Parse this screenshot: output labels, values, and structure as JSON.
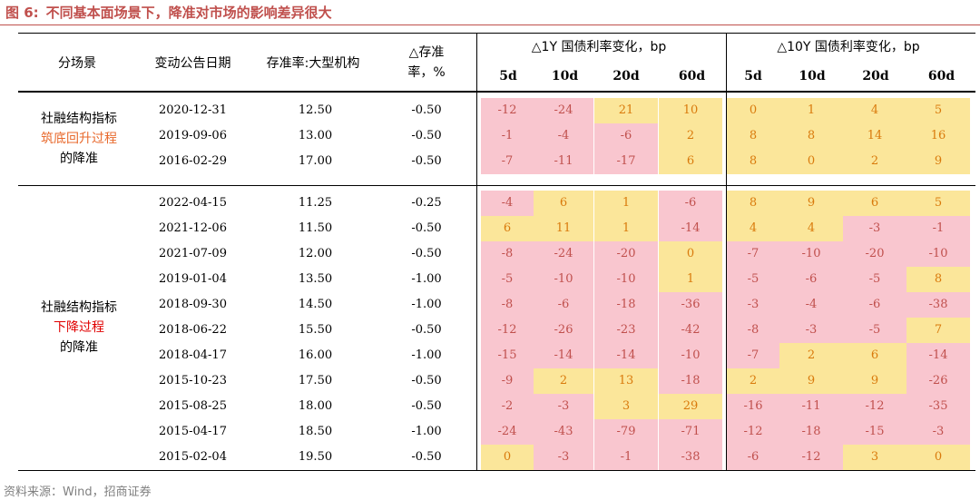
{
  "title": {
    "figure_no": "图 6:",
    "text": "不同基本面场景下，降准对市场的影响差异很大"
  },
  "colors": {
    "title": "#c0504d",
    "positive_bg": "#fbe69a",
    "negative_bg": "#f9c6cf",
    "accent_orange": "#e8692c",
    "accent_red": "#e00000"
  },
  "header": {
    "scene": "分场景",
    "date": "变动公告日期",
    "rrr": "存准率:大型机构",
    "delta_rrr_line1": "△存准",
    "delta_rrr_line2": "率，%",
    "group_1y": "△1Y 国债利率变化，bp",
    "group_10y": "△10Y 国债利率变化，bp",
    "horizons": [
      "5d",
      "10d",
      "20d",
      "60d"
    ]
  },
  "groups": [
    {
      "line1": "社融结构指标",
      "line2": "筑底回升过程",
      "line3": "的降准"
    },
    {
      "line1": "社融结构指标",
      "line2": "下降过程",
      "line3": "的降准"
    }
  ],
  "footer": "资料来源：Wind，招商证券",
  "chart_data": {
    "type": "table",
    "title": "不同基本面场景下，降准对市场的影响差异很大",
    "columns": [
      "分场景",
      "变动公告日期",
      "存准率:大型机构",
      "△存准率，%",
      "△1Y 5d",
      "△1Y 10d",
      "△1Y 20d",
      "△1Y 60d",
      "△10Y 5d",
      "△10Y 10d",
      "△10Y 20d",
      "△10Y 60d"
    ],
    "rows": [
      {
        "group": 0,
        "date": "2020-12-31",
        "rrr": "12.50",
        "delta": "-0.50",
        "y1": [
          -12,
          -24,
          21,
          10
        ],
        "y10": [
          0,
          1,
          4,
          5
        ]
      },
      {
        "group": 0,
        "date": "2019-09-06",
        "rrr": "13.00",
        "delta": "-0.50",
        "y1": [
          -1,
          -4,
          -6,
          2
        ],
        "y10": [
          8,
          8,
          14,
          16
        ]
      },
      {
        "group": 0,
        "date": "2016-02-29",
        "rrr": "17.00",
        "delta": "-0.50",
        "y1": [
          -7,
          -11,
          -17,
          6
        ],
        "y10": [
          8,
          0,
          2,
          9
        ]
      },
      {
        "group": 1,
        "date": "2022-04-15",
        "rrr": "11.25",
        "delta": "-0.25",
        "y1": [
          -4,
          6,
          1,
          -6
        ],
        "y10": [
          8,
          9,
          6,
          5
        ]
      },
      {
        "group": 1,
        "date": "2021-12-06",
        "rrr": "11.50",
        "delta": "-0.50",
        "y1": [
          6,
          11,
          1,
          -14
        ],
        "y10": [
          4,
          4,
          -3,
          -1
        ]
      },
      {
        "group": 1,
        "date": "2021-07-09",
        "rrr": "12.00",
        "delta": "-0.50",
        "y1": [
          -8,
          -24,
          -20,
          0
        ],
        "y10": [
          -7,
          -10,
          -20,
          -10
        ]
      },
      {
        "group": 1,
        "date": "2019-01-04",
        "rrr": "13.50",
        "delta": "-1.00",
        "y1": [
          -5,
          -10,
          -10,
          1
        ],
        "y10": [
          -5,
          -6,
          -5,
          8
        ]
      },
      {
        "group": 1,
        "date": "2018-09-30",
        "rrr": "14.50",
        "delta": "-1.00",
        "y1": [
          -8,
          -6,
          -18,
          -36
        ],
        "y10": [
          -3,
          -4,
          -6,
          -38
        ]
      },
      {
        "group": 1,
        "date": "2018-06-22",
        "rrr": "15.50",
        "delta": "-0.50",
        "y1": [
          -12,
          -26,
          -23,
          -42
        ],
        "y10": [
          -8,
          -3,
          -5,
          7
        ]
      },
      {
        "group": 1,
        "date": "2018-04-17",
        "rrr": "16.00",
        "delta": "-1.00",
        "y1": [
          -15,
          -14,
          -14,
          -10
        ],
        "y10": [
          -7,
          2,
          6,
          -14
        ]
      },
      {
        "group": 1,
        "date": "2015-10-23",
        "rrr": "17.50",
        "delta": "-0.50",
        "y1": [
          -9,
          2,
          13,
          -18
        ],
        "y10": [
          2,
          9,
          9,
          -26
        ]
      },
      {
        "group": 1,
        "date": "2015-08-25",
        "rrr": "18.00",
        "delta": "-0.50",
        "y1": [
          -2,
          -3,
          3,
          29
        ],
        "y10": [
          -16,
          -11,
          -12,
          -35
        ]
      },
      {
        "group": 1,
        "date": "2015-04-17",
        "rrr": "18.50",
        "delta": "-1.00",
        "y1": [
          -24,
          -43,
          -79,
          -71
        ],
        "y10": [
          -12,
          -18,
          -15,
          -3
        ]
      },
      {
        "group": 1,
        "date": "2015-02-04",
        "rrr": "19.50",
        "delta": "-0.50",
        "y1": [
          0,
          -3,
          -1,
          -38
        ],
        "y10": [
          -6,
          -12,
          3,
          0
        ]
      }
    ]
  }
}
